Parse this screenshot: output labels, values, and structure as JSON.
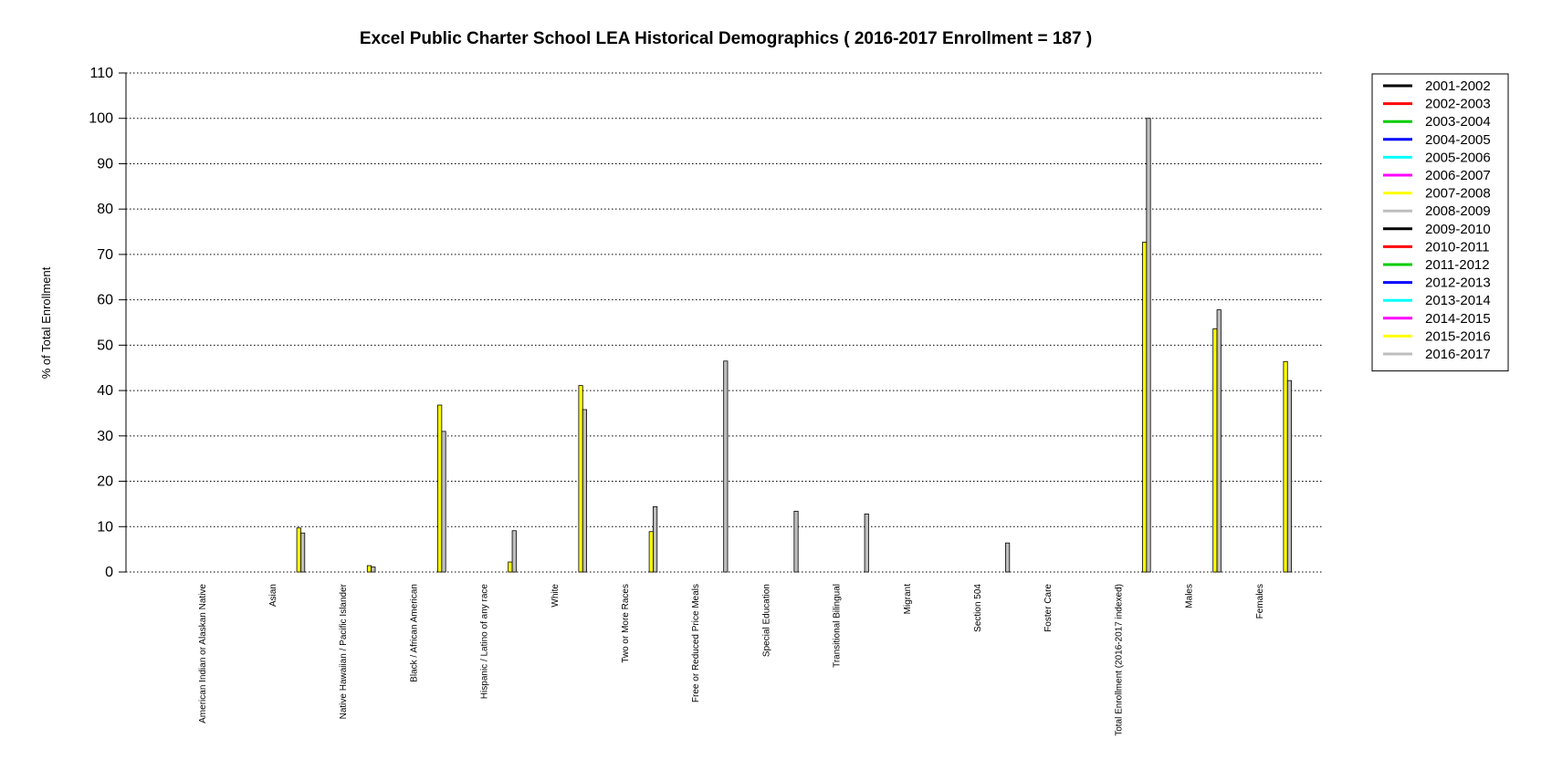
{
  "chart_data": {
    "type": "bar",
    "title": "Excel Public Charter School LEA Historical Demographics  ( 2016-2017 Enrollment =  187 )",
    "xlabel": "",
    "ylabel": "% of Total Enrollment",
    "ylim": [
      0,
      110
    ],
    "yticks": [
      "0",
      "10",
      "20",
      "30",
      "40",
      "50",
      "60",
      "70",
      "80",
      "90",
      "100",
      "110"
    ],
    "grid": "horizontal dotted",
    "legend_position": "right",
    "categories": [
      "American Indian or Alaskan Native",
      "Asian",
      "Native Hawaiian / Pacific Islander",
      "Black / African American",
      "Hispanic / Latino of any race",
      "White",
      "Two or More Races",
      "Free or Reduced Price Meals",
      "Special Education",
      "Transitional Bilingual",
      "Migrant",
      "Section 504",
      "Foster Care",
      "Total Enrollment (2016-2017 indexed)",
      "Males",
      "Females"
    ],
    "series": [
      {
        "name": "2001-2002",
        "color": "#000000",
        "values": [
          0,
          0,
          0,
          0,
          0,
          0,
          0,
          0,
          0,
          0,
          0,
          0,
          0,
          0,
          0,
          0
        ]
      },
      {
        "name": "2002-2003",
        "color": "#ff0000",
        "values": [
          0,
          0,
          0,
          0,
          0,
          0,
          0,
          0,
          0,
          0,
          0,
          0,
          0,
          0,
          0,
          0
        ]
      },
      {
        "name": "2003-2004",
        "color": "#00cd00",
        "values": [
          0,
          0,
          0,
          0,
          0,
          0,
          0,
          0,
          0,
          0,
          0,
          0,
          0,
          0,
          0,
          0
        ]
      },
      {
        "name": "2004-2005",
        "color": "#0000ff",
        "values": [
          0,
          0,
          0,
          0,
          0,
          0,
          0,
          0,
          0,
          0,
          0,
          0,
          0,
          0,
          0,
          0
        ]
      },
      {
        "name": "2005-2006",
        "color": "#00ffff",
        "values": [
          0,
          0,
          0,
          0,
          0,
          0,
          0,
          0,
          0,
          0,
          0,
          0,
          0,
          0,
          0,
          0
        ]
      },
      {
        "name": "2006-2007",
        "color": "#ff00ff",
        "values": [
          0,
          0,
          0,
          0,
          0,
          0,
          0,
          0,
          0,
          0,
          0,
          0,
          0,
          0,
          0,
          0
        ]
      },
      {
        "name": "2007-2008",
        "color": "#ffff00",
        "values": [
          0,
          0,
          0,
          0,
          0,
          0,
          0,
          0,
          0,
          0,
          0,
          0,
          0,
          0,
          0,
          0
        ]
      },
      {
        "name": "2008-2009",
        "color": "#bebebe",
        "values": [
          0,
          0,
          0,
          0,
          0,
          0,
          0,
          0,
          0,
          0,
          0,
          0,
          0,
          0,
          0,
          0
        ]
      },
      {
        "name": "2009-2010",
        "color": "#000000",
        "values": [
          0,
          0,
          0,
          0,
          0,
          0,
          0,
          0,
          0,
          0,
          0,
          0,
          0,
          0,
          0,
          0
        ]
      },
      {
        "name": "2010-2011",
        "color": "#ff0000",
        "values": [
          0,
          0,
          0,
          0,
          0,
          0,
          0,
          0,
          0,
          0,
          0,
          0,
          0,
          0,
          0,
          0
        ]
      },
      {
        "name": "2011-2012",
        "color": "#00cd00",
        "values": [
          0,
          0,
          0,
          0,
          0,
          0,
          0,
          0,
          0,
          0,
          0,
          0,
          0,
          0,
          0,
          0
        ]
      },
      {
        "name": "2012-2013",
        "color": "#0000ff",
        "values": [
          0,
          0,
          0,
          0,
          0,
          0,
          0,
          0,
          0,
          0,
          0,
          0,
          0,
          0,
          0,
          0
        ]
      },
      {
        "name": "2013-2014",
        "color": "#00ffff",
        "values": [
          0,
          0,
          0,
          0,
          0,
          0,
          0,
          0,
          0,
          0,
          0,
          0,
          0,
          0,
          0,
          0
        ]
      },
      {
        "name": "2014-2015",
        "color": "#ff00ff",
        "values": [
          0,
          0,
          0,
          0,
          0,
          0,
          0,
          0,
          0,
          0,
          0,
          0,
          0,
          0,
          0,
          0
        ]
      },
      {
        "name": "2015-2016",
        "color": "#ffff00",
        "values": [
          0,
          9.7,
          1.4,
          36.8,
          2.2,
          41.1,
          8.9,
          0,
          0,
          0,
          0,
          0,
          0,
          72.7,
          53.6,
          46.4
        ]
      },
      {
        "name": "2016-2017",
        "color": "#bebebe",
        "values": [
          0,
          8.6,
          1.1,
          31.0,
          9.1,
          35.8,
          14.4,
          46.5,
          13.4,
          12.8,
          0,
          6.4,
          0,
          100,
          57.8,
          42.2
        ]
      }
    ]
  }
}
